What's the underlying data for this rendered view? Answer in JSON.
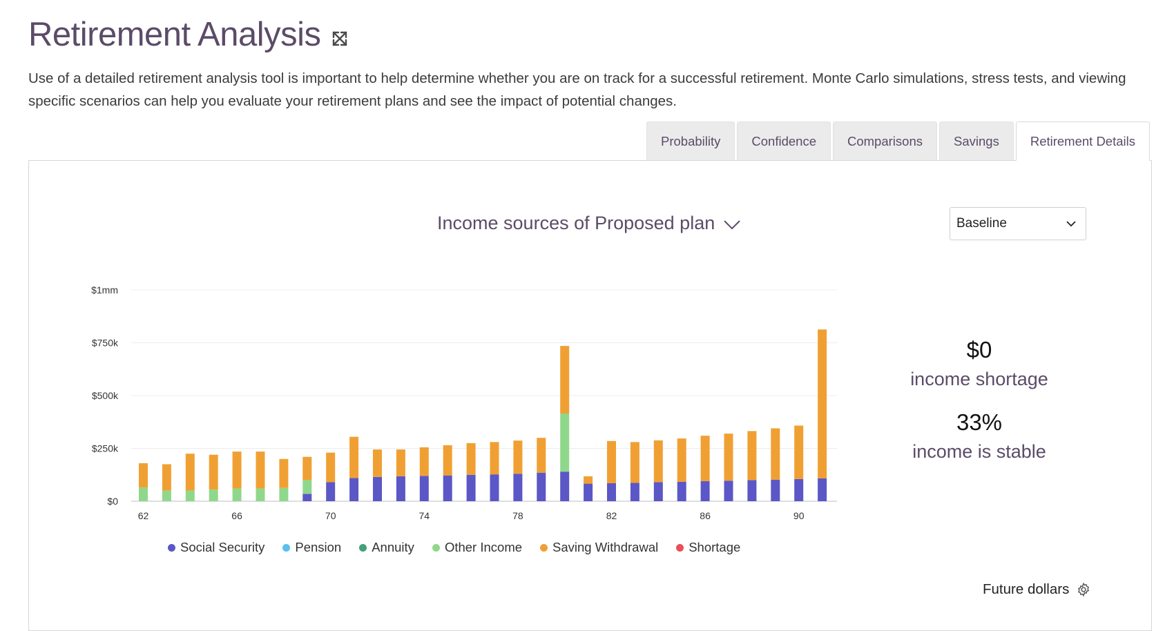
{
  "page": {
    "title": "Retirement Analysis",
    "description": "Use of a detailed retirement analysis tool is important to help determine whether you are on track for a successful retirement. Monte Carlo simulations, stress tests, and viewing specific scenarios can help you evaluate your retirement plans and see the impact of potential changes.",
    "expand_icon": "expand-arrows-icon"
  },
  "tabs": [
    {
      "label": "Probability",
      "active": false
    },
    {
      "label": "Confidence",
      "active": false
    },
    {
      "label": "Comparisons",
      "active": false
    },
    {
      "label": "Savings",
      "active": false
    },
    {
      "label": "Retirement Details",
      "active": true
    }
  ],
  "plan_selector": {
    "label": "Income sources of Proposed plan",
    "icon": "chevron-down-icon"
  },
  "scenario_select": {
    "value": "Baseline",
    "icon": "chevron-down-icon"
  },
  "stats": [
    {
      "value": "$0",
      "label": "income shortage"
    },
    {
      "value": "33%",
      "label": "income is stable"
    }
  ],
  "footer": {
    "label": "Future dollars",
    "icon": "gear-icon"
  },
  "chart_data": {
    "type": "bar",
    "stacked": true,
    "title": "",
    "xlabel": "",
    "ylabel": "",
    "ylim": [
      0,
      1000000
    ],
    "y_ticks": [
      {
        "value": 0,
        "label": "$0"
      },
      {
        "value": 250000,
        "label": "$250k"
      },
      {
        "value": 500000,
        "label": "$500k"
      },
      {
        "value": 750000,
        "label": "$750k"
      },
      {
        "value": 1000000,
        "label": "$1mm"
      }
    ],
    "x_tick_labels": [
      "62",
      "66",
      "70",
      "74",
      "78",
      "82",
      "86",
      "90"
    ],
    "categories": [
      62,
      63,
      64,
      65,
      66,
      67,
      68,
      69,
      70,
      71,
      72,
      73,
      74,
      75,
      76,
      77,
      78,
      79,
      80,
      81,
      82,
      83,
      84,
      85,
      86,
      87,
      88,
      89,
      90,
      91
    ],
    "legend_position": "bottom",
    "grid": true,
    "series": [
      {
        "name": "Social Security",
        "color": "#5b57c6",
        "values": [
          0,
          0,
          0,
          0,
          0,
          0,
          0,
          35000,
          90000,
          110000,
          115000,
          118000,
          120000,
          122000,
          125000,
          127000,
          130000,
          135000,
          140000,
          83000,
          85000,
          87000,
          90000,
          92000,
          95000,
          97000,
          100000,
          102000,
          105000,
          108000
        ]
      },
      {
        "name": "Pension",
        "color": "#5bbff0",
        "values": [
          0,
          0,
          0,
          0,
          0,
          0,
          0,
          0,
          0,
          0,
          0,
          0,
          0,
          0,
          0,
          0,
          0,
          0,
          0,
          0,
          0,
          0,
          0,
          0,
          0,
          0,
          0,
          0,
          0,
          0
        ]
      },
      {
        "name": "Annuity",
        "color": "#43a07a",
        "values": [
          0,
          0,
          0,
          0,
          0,
          0,
          0,
          0,
          0,
          0,
          0,
          0,
          0,
          0,
          0,
          0,
          0,
          0,
          0,
          0,
          0,
          0,
          0,
          0,
          0,
          0,
          0,
          0,
          0,
          0
        ]
      },
      {
        "name": "Other Income",
        "color": "#8fd88b",
        "values": [
          65000,
          50000,
          50000,
          55000,
          60000,
          60000,
          63000,
          65000,
          0,
          0,
          0,
          0,
          0,
          0,
          0,
          0,
          0,
          0,
          275000,
          0,
          0,
          0,
          0,
          0,
          0,
          0,
          0,
          0,
          0,
          0
        ]
      },
      {
        "name": "Saving Withdrawal",
        "color": "#f0a033",
        "values": [
          115000,
          125000,
          175000,
          165000,
          175000,
          175000,
          137000,
          110000,
          140000,
          195000,
          130000,
          127000,
          135000,
          143000,
          150000,
          153000,
          157000,
          165000,
          320000,
          35000,
          200000,
          193000,
          198000,
          205000,
          215000,
          223000,
          232000,
          243000,
          253000,
          705000
        ]
      },
      {
        "name": "Shortage",
        "color": "#e8505b",
        "values": [
          0,
          0,
          0,
          0,
          0,
          0,
          0,
          0,
          0,
          0,
          0,
          0,
          0,
          0,
          0,
          0,
          0,
          0,
          0,
          0,
          0,
          0,
          0,
          0,
          0,
          0,
          0,
          0,
          0,
          0
        ]
      }
    ]
  }
}
